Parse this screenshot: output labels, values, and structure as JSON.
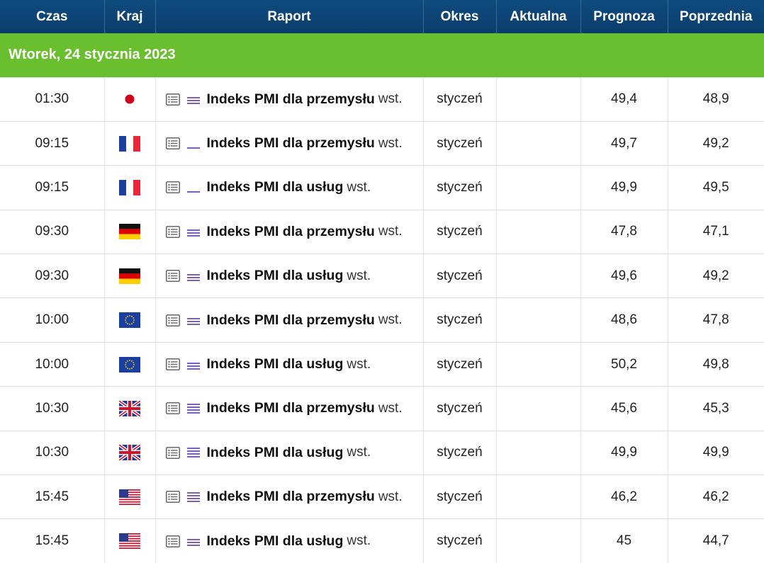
{
  "header": {
    "time": "Czas",
    "country": "Kraj",
    "report": "Raport",
    "period": "Okres",
    "actual": "Aktualna",
    "forecast": "Prognoza",
    "previous": "Poprzednia"
  },
  "day_label": "Wtorek, 24 stycznia 2023",
  "importance_color": "#7b5fc8",
  "rows": [
    {
      "time": "01:30",
      "flag": "jp-flag-icon",
      "importance": 3,
      "name": "Indeks PMI dla przemysłu",
      "suffix": "wst.",
      "period": "styczeń",
      "actual": "",
      "forecast": "49,4",
      "previous": "48,9"
    },
    {
      "time": "09:15",
      "flag": "fr-flag-icon",
      "importance": 1,
      "name": "Indeks PMI dla przemysłu",
      "suffix": "wst.",
      "period": "styczeń",
      "actual": "",
      "forecast": "49,7",
      "previous": "49,2"
    },
    {
      "time": "09:15",
      "flag": "fr-flag-icon",
      "importance": 1,
      "name": "Indeks PMI dla usług",
      "suffix": "wst.",
      "period": "styczeń",
      "actual": "",
      "forecast": "49,9",
      "previous": "49,5"
    },
    {
      "time": "09:30",
      "flag": "de-flag-icon",
      "importance": 3,
      "name": "Indeks PMI dla przemysłu",
      "suffix": "wst.",
      "period": "styczeń",
      "actual": "",
      "forecast": "47,8",
      "previous": "47,1"
    },
    {
      "time": "09:30",
      "flag": "de-flag-icon",
      "importance": 3,
      "name": "Indeks PMI dla usług",
      "suffix": "wst.",
      "period": "styczeń",
      "actual": "",
      "forecast": "49,6",
      "previous": "49,2"
    },
    {
      "time": "10:00",
      "flag": "eu-flag-icon",
      "importance": 3,
      "name": "Indeks PMI dla przemysłu",
      "suffix": "wst.",
      "period": "styczeń",
      "actual": "",
      "forecast": "48,6",
      "previous": "47,8"
    },
    {
      "time": "10:00",
      "flag": "eu-flag-icon",
      "importance": 3,
      "name": "Indeks PMI dla usług",
      "suffix": "wst.",
      "period": "styczeń",
      "actual": "",
      "forecast": "50,2",
      "previous": "49,8"
    },
    {
      "time": "10:30",
      "flag": "uk-flag-icon",
      "importance": 4,
      "name": "Indeks PMI dla przemysłu",
      "suffix": "wst.",
      "period": "styczeń",
      "actual": "",
      "forecast": "45,6",
      "previous": "45,3"
    },
    {
      "time": "10:30",
      "flag": "uk-flag-icon",
      "importance": 4,
      "name": "Indeks PMI dla usług",
      "suffix": "wst.",
      "period": "styczeń",
      "actual": "",
      "forecast": "49,9",
      "previous": "49,9"
    },
    {
      "time": "15:45",
      "flag": "us-flag-icon",
      "importance": 4,
      "name": "Indeks PMI dla przemysłu",
      "suffix": "wst.",
      "period": "styczeń",
      "actual": "",
      "forecast": "46,2",
      "previous": "46,2"
    },
    {
      "time": "15:45",
      "flag": "us-flag-icon",
      "importance": 3,
      "name": "Indeks PMI dla usług",
      "suffix": "wst.",
      "period": "styczeń",
      "actual": "",
      "forecast": "45",
      "previous": "44,7"
    }
  ]
}
